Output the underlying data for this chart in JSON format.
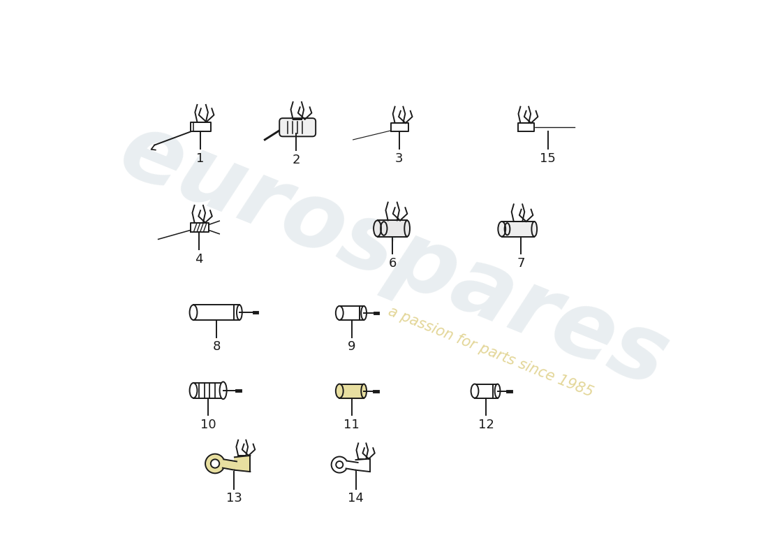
{
  "bg": "#ffffff",
  "lc": "#1a1a1a",
  "lw": 1.4,
  "watermark1": "eurospares",
  "watermark2": "a passion for parts since 1985",
  "wm1_color": "#b8c8d0",
  "wm2_color": "#d4c060",
  "label_fontsize": 13,
  "rows": {
    "r1y": 6.7,
    "r2y": 4.85,
    "r3y": 3.3,
    "r4y": 1.85,
    "r5y": 0.45
  },
  "item_x": {
    "1": 1.8,
    "2": 3.5,
    "3": 5.5,
    "15": 7.8,
    "4": 1.8,
    "6": 5.2,
    "7": 7.5,
    "8": 1.8,
    "9": 4.5,
    "10": 1.8,
    "11": 4.5,
    "12": 7.0,
    "13": 2.2,
    "14": 4.5
  }
}
